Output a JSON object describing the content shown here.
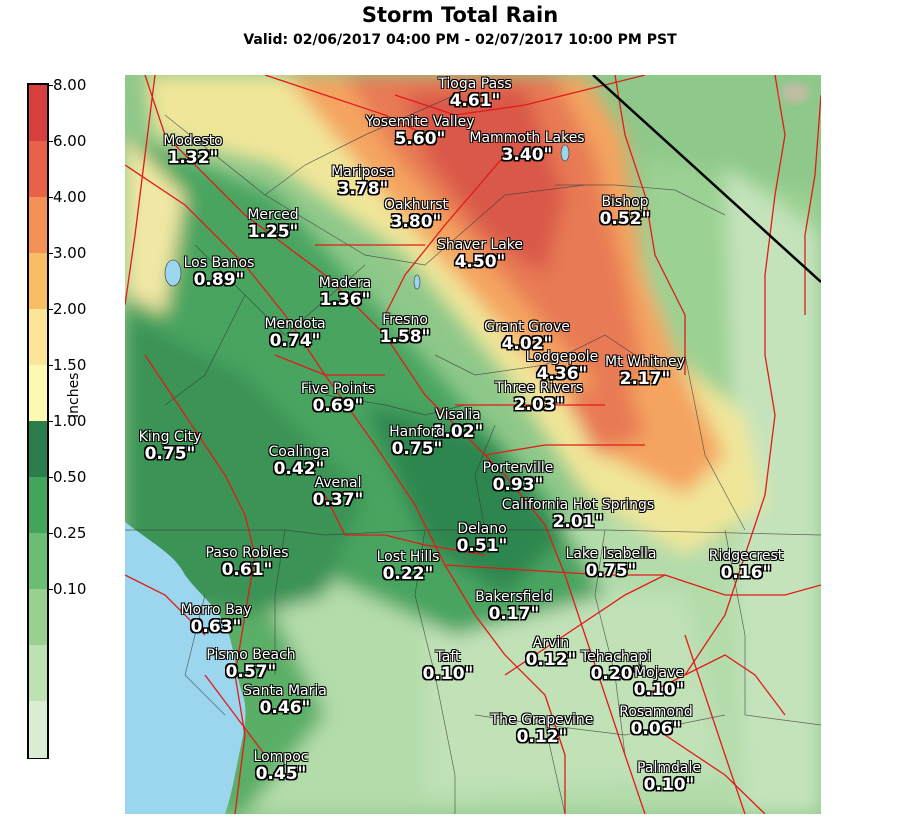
{
  "title": "Storm Total Rain",
  "subtitle": "Valid: 02/06/2017 04:00 PM - 02/07/2017 10:00 PM PST",
  "legend": {
    "unit": "Inches",
    "ticks": [
      "8.00",
      "6.00",
      "4.00",
      "3.00",
      "2.00",
      "1.50",
      "1.00",
      "0.50",
      "0.25",
      "0.10"
    ],
    "colors": [
      "#d7403f",
      "#e8624a",
      "#f39156",
      "#f8be63",
      "#fbe597",
      "#fdf9b2",
      "#2c7d4c",
      "#43a45c",
      "#6bbd72",
      "#9ad08f",
      "#bde1b3",
      "#d9eed3"
    ]
  },
  "places": [
    {
      "name": "Tioga Pass",
      "value": "4.61\""
    },
    {
      "name": "Yosemite Valley",
      "value": "5.60\""
    },
    {
      "name": "Mammoth Lakes",
      "value": "3.40\""
    },
    {
      "name": "Modesto",
      "value": "1.32\""
    },
    {
      "name": "Mariposa",
      "value": "3.78\""
    },
    {
      "name": "Oakhurst",
      "value": "3.80\""
    },
    {
      "name": "Bishop",
      "value": "0.52\""
    },
    {
      "name": "Merced",
      "value": "1.25\""
    },
    {
      "name": "Shaver Lake",
      "value": "4.50\""
    },
    {
      "name": "Los Banos",
      "value": "0.89\""
    },
    {
      "name": "Madera",
      "value": "1.36\""
    },
    {
      "name": "Mendota",
      "value": "0.74\""
    },
    {
      "name": "Fresno",
      "value": "1.58\""
    },
    {
      "name": "Grant Grove",
      "value": "4.02\""
    },
    {
      "name": "Lodgepole",
      "value": "4.36\""
    },
    {
      "name": "Mt Whitney",
      "value": "2.17\""
    },
    {
      "name": "Five Points",
      "value": "0.69\""
    },
    {
      "name": "Three Rivers",
      "value": "2.03\""
    },
    {
      "name": "Visalia",
      "value": "1.02\""
    },
    {
      "name": "King City",
      "value": "0.75\""
    },
    {
      "name": "Hanford",
      "value": "0.75\""
    },
    {
      "name": "Coalinga",
      "value": "0.42\""
    },
    {
      "name": "Porterville",
      "value": "0.93\""
    },
    {
      "name": "Avenal",
      "value": "0.37\""
    },
    {
      "name": "California Hot Springs",
      "value": "2.01\""
    },
    {
      "name": "Delano",
      "value": "0.51\""
    },
    {
      "name": "Paso Robles",
      "value": "0.61\""
    },
    {
      "name": "Lost Hills",
      "value": "0.22\""
    },
    {
      "name": "Lake Isabella",
      "value": "0.75\""
    },
    {
      "name": "Ridgecrest",
      "value": "0.16\""
    },
    {
      "name": "Bakersfield",
      "value": "0.17\""
    },
    {
      "name": "Morro Bay",
      "value": "0.63\""
    },
    {
      "name": "Arvin",
      "value": "0.12\""
    },
    {
      "name": "Pismo Beach",
      "value": "0.57\""
    },
    {
      "name": "Taft",
      "value": "0.10\""
    },
    {
      "name": "Tehachapi",
      "value": "0.20\""
    },
    {
      "name": "Mojave",
      "value": "0.10\""
    },
    {
      "name": "Santa Maria",
      "value": "0.46\""
    },
    {
      "name": "Rosamond",
      "value": "0.06\""
    },
    {
      "name": "The Grapevine",
      "value": "0.12\""
    },
    {
      "name": "Lompoc",
      "value": "0.45\""
    },
    {
      "name": "Palmdale",
      "value": "0.10\""
    }
  ]
}
